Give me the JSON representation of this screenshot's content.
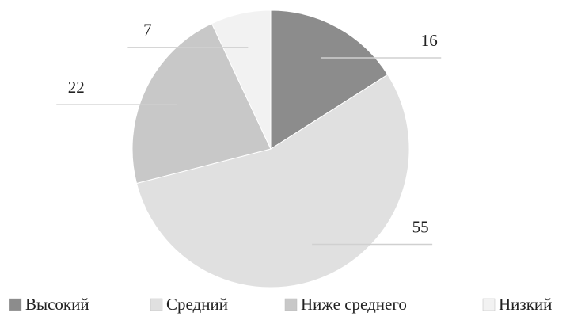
{
  "chart_data": {
    "type": "pie",
    "categories": [
      "Высокий",
      "Средний",
      "Ниже среднего",
      "Низкий"
    ],
    "values": [
      16,
      55,
      22,
      7
    ],
    "colors": [
      "#8c8c8c",
      "#e0e0e0",
      "#c8c8c8",
      "#f2f2f2"
    ],
    "legend": "bottom"
  }
}
